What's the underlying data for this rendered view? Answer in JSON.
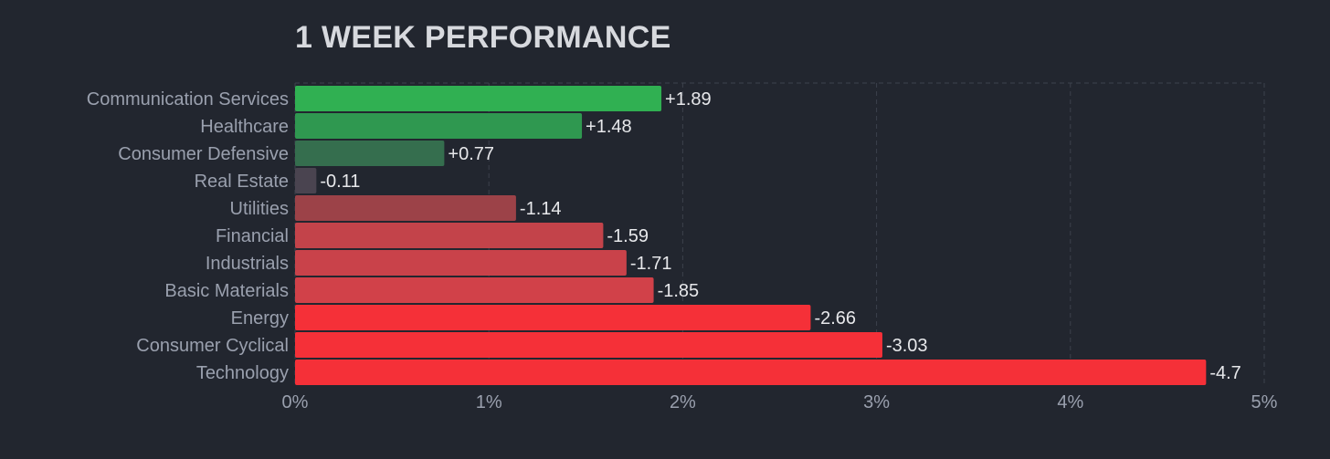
{
  "chart_data": {
    "type": "bar",
    "orientation": "horizontal",
    "title": "1 WEEK PERFORMANCE",
    "xlabel": "",
    "ylabel": "",
    "xlim": [
      0,
      5
    ],
    "x_ticks": [
      "0%",
      "1%",
      "2%",
      "3%",
      "4%",
      "5%"
    ],
    "grid": true,
    "categories": [
      "Communication Services",
      "Healthcare",
      "Consumer Defensive",
      "Real Estate",
      "Utilities",
      "Financial",
      "Industrials",
      "Basic Materials",
      "Energy",
      "Consumer Cyclical",
      "Technology"
    ],
    "values": [
      1.89,
      1.48,
      0.77,
      -0.11,
      -1.14,
      -1.59,
      -1.71,
      -1.85,
      -2.66,
      -3.03,
      -4.7
    ],
    "value_labels": [
      "+1.89",
      "+1.48",
      "+0.77",
      "-0.11",
      "-1.14",
      "-1.59",
      "-1.71",
      "-1.85",
      "-2.66",
      "-3.03",
      "-4.7"
    ],
    "bar_colors": [
      "#30b052",
      "#2f9850",
      "#356e4e",
      "#4a4450",
      "#9c4248",
      "#c3434a",
      "#c9424a",
      "#d14149",
      "#f53038",
      "#f53038",
      "#f53038"
    ],
    "colors": {
      "background": "#22262f",
      "grid": "#3c414c",
      "axis_text": "#9aa0ae",
      "title": "#d7d9de",
      "value_text": "#e7e8eb"
    }
  }
}
